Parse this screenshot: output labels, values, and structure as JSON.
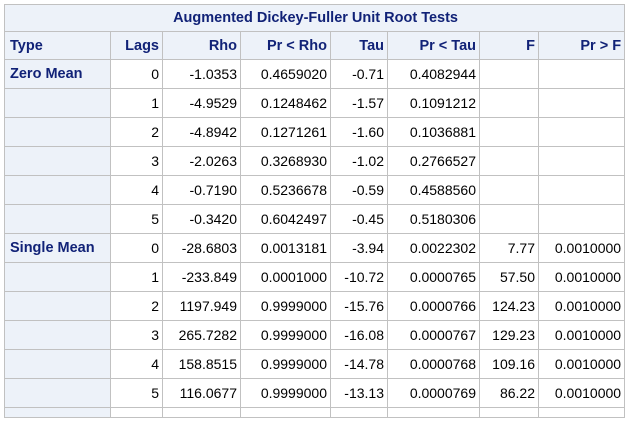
{
  "table": {
    "title": "Augmented Dickey-Fuller Unit Root Tests",
    "columns": [
      "Type",
      "Lags",
      "Rho",
      "Pr < Rho",
      "Tau",
      "Pr < Tau",
      "F",
      "Pr > F"
    ],
    "rows": [
      {
        "type": "Zero Mean",
        "lags": "0",
        "rho": "-1.0353",
        "pr_rho": "0.4659020",
        "tau": "-0.71",
        "pr_tau": "0.4082944",
        "f": "",
        "pr_f": ""
      },
      {
        "type": "",
        "lags": "1",
        "rho": "-4.9529",
        "pr_rho": "0.1248462",
        "tau": "-1.57",
        "pr_tau": "0.1091212",
        "f": "",
        "pr_f": ""
      },
      {
        "type": "",
        "lags": "2",
        "rho": "-4.8942",
        "pr_rho": "0.1271261",
        "tau": "-1.60",
        "pr_tau": "0.1036881",
        "f": "",
        "pr_f": ""
      },
      {
        "type": "",
        "lags": "3",
        "rho": "-2.0263",
        "pr_rho": "0.3268930",
        "tau": "-1.02",
        "pr_tau": "0.2766527",
        "f": "",
        "pr_f": ""
      },
      {
        "type": "",
        "lags": "4",
        "rho": "-0.7190",
        "pr_rho": "0.5236678",
        "tau": "-0.59",
        "pr_tau": "0.4588560",
        "f": "",
        "pr_f": ""
      },
      {
        "type": "",
        "lags": "5",
        "rho": "-0.3420",
        "pr_rho": "0.6042497",
        "tau": "-0.45",
        "pr_tau": "0.5180306",
        "f": "",
        "pr_f": ""
      },
      {
        "type": "Single Mean",
        "lags": "0",
        "rho": "-28.6803",
        "pr_rho": "0.0013181",
        "tau": "-3.94",
        "pr_tau": "0.0022302",
        "f": "7.77",
        "pr_f": "0.0010000"
      },
      {
        "type": "",
        "lags": "1",
        "rho": "-233.849",
        "pr_rho": "0.0001000",
        "tau": "-10.72",
        "pr_tau": "0.0000765",
        "f": "57.50",
        "pr_f": "0.0010000"
      },
      {
        "type": "",
        "lags": "2",
        "rho": "1197.949",
        "pr_rho": "0.9999000",
        "tau": "-15.76",
        "pr_tau": "0.0000766",
        "f": "124.23",
        "pr_f": "0.0010000"
      },
      {
        "type": "",
        "lags": "3",
        "rho": "265.7282",
        "pr_rho": "0.9999000",
        "tau": "-16.08",
        "pr_tau": "0.0000767",
        "f": "129.23",
        "pr_f": "0.0010000"
      },
      {
        "type": "",
        "lags": "4",
        "rho": "158.8515",
        "pr_rho": "0.9999000",
        "tau": "-14.78",
        "pr_tau": "0.0000768",
        "f": "109.16",
        "pr_f": "0.0010000"
      },
      {
        "type": "",
        "lags": "5",
        "rho": "116.0677",
        "pr_rho": "0.9999000",
        "tau": "-13.13",
        "pr_tau": "0.0000769",
        "f": "86.22",
        "pr_f": "0.0010000"
      }
    ]
  },
  "colors": {
    "header_bg": "#edf2f9",
    "header_text": "#112277",
    "grid": "#c1c1c1"
  }
}
